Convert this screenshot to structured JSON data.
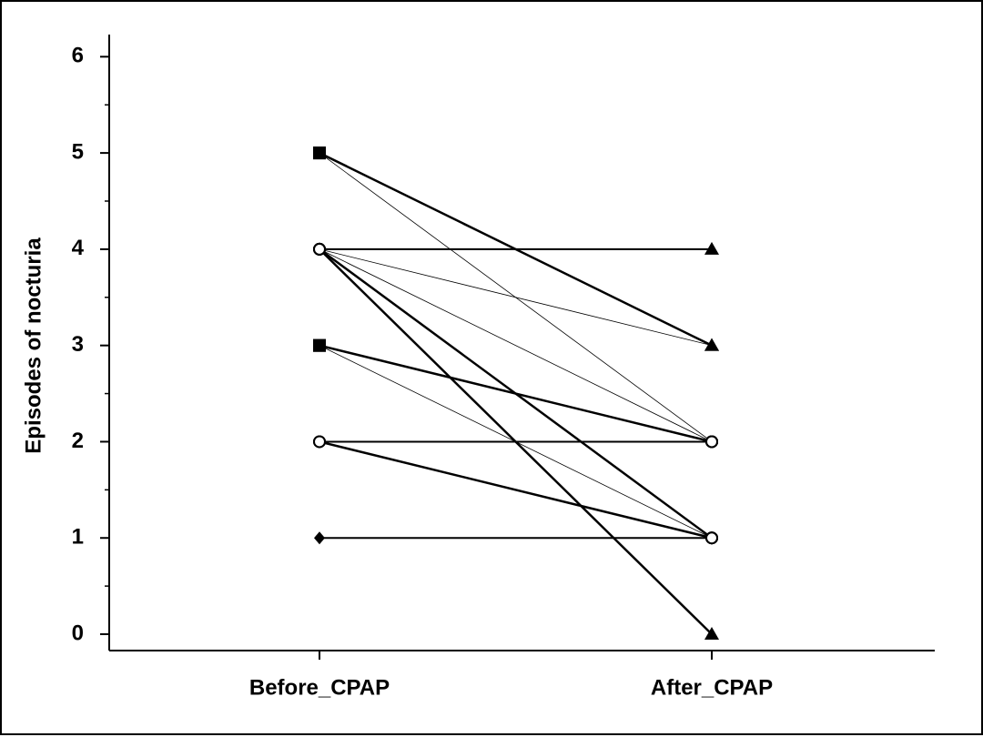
{
  "chart_data": {
    "type": "line",
    "categories": [
      "Before_CPAP",
      "After_CPAP"
    ],
    "y_label": "Episodes of nocturia",
    "ylim": [
      -0.17,
      6.23
    ],
    "yticks": [
      0,
      1,
      2,
      3,
      4,
      5,
      6
    ],
    "series": [
      {
        "color": "#000000",
        "line_width": 2.5,
        "markers": [
          "square",
          "triangle"
        ],
        "values": [
          5,
          3
        ]
      },
      {
        "color": "#000000",
        "line_width": 0.8,
        "markers": [
          "square",
          "circle"
        ],
        "values": [
          5,
          2
        ]
      },
      {
        "color": "#000000",
        "line_width": 2,
        "markers": [
          "circle",
          "triangle"
        ],
        "values": [
          4,
          4
        ]
      },
      {
        "color": "#000000",
        "line_width": 0.8,
        "markers": [
          "circle",
          "triangle"
        ],
        "values": [
          4,
          3
        ]
      },
      {
        "color": "#000000",
        "line_width": 0.8,
        "markers": [
          "circle",
          "circle"
        ],
        "values": [
          4,
          2
        ]
      },
      {
        "color": "#000000",
        "line_width": 2.5,
        "markers": [
          "circle",
          "circle"
        ],
        "values": [
          4,
          1
        ]
      },
      {
        "color": "#000000",
        "line_width": 2.5,
        "markers": [
          "circle",
          "triangle"
        ],
        "values": [
          4,
          0
        ]
      },
      {
        "color": "#000000",
        "line_width": 2.5,
        "markers": [
          "square",
          "circle"
        ],
        "values": [
          3,
          2
        ]
      },
      {
        "color": "#000000",
        "line_width": 0.8,
        "markers": [
          "square",
          "circle"
        ],
        "values": [
          3,
          1
        ]
      },
      {
        "color": "#000000",
        "line_width": 2,
        "markers": [
          "circle",
          "circle"
        ],
        "values": [
          2,
          2
        ]
      },
      {
        "color": "#000000",
        "line_width": 2.5,
        "markers": [
          "circle",
          "circle"
        ],
        "values": [
          2,
          1
        ]
      },
      {
        "color": "#000000",
        "line_width": 2,
        "markers": [
          "diamond",
          "circle"
        ],
        "values": [
          1,
          1
        ]
      }
    ]
  }
}
